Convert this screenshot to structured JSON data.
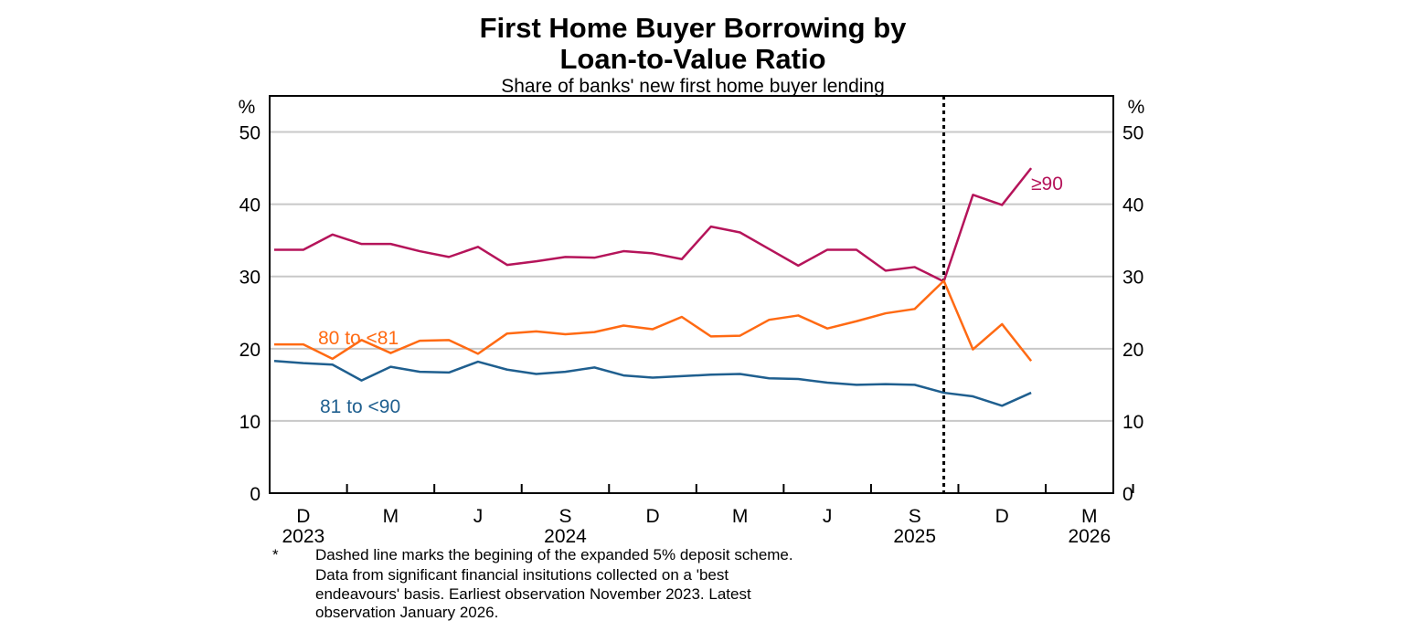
{
  "chart_data": {
    "type": "line",
    "title_lines": [
      "First Home Buyer Borrowing by",
      "Loan-to-Value Ratio"
    ],
    "subtitle": "Share of banks' new first home buyer lending",
    "ylabel_left": "%",
    "ylabel_right": "%",
    "ylim": [
      0,
      55
    ],
    "yticks": [
      0,
      10,
      20,
      30,
      40,
      50
    ],
    "x_start": "2023-11",
    "x_end": "2026-01",
    "xticks": [
      {
        "label": "D",
        "year": "2023"
      },
      {
        "label": "M",
        "year": ""
      },
      {
        "label": "J",
        "year": ""
      },
      {
        "label": "S",
        "year": "2024"
      },
      {
        "label": "D",
        "year": ""
      },
      {
        "label": "M",
        "year": ""
      },
      {
        "label": "J",
        "year": ""
      },
      {
        "label": "S",
        "year": "2025"
      },
      {
        "label": "D",
        "year": ""
      },
      {
        "label": "M",
        "year": "2026"
      }
    ],
    "grid": true,
    "marker_month": "2025-10",
    "series": [
      {
        "name": "≥90",
        "color": "#b5145a",
        "values": [
          33.7,
          33.7,
          35.8,
          34.5,
          34.5,
          33.5,
          32.7,
          34.1,
          31.6,
          32.1,
          32.7,
          32.6,
          33.5,
          33.2,
          32.4,
          36.9,
          36.1,
          33.8,
          31.5,
          33.7,
          33.7,
          30.8,
          31.3,
          29.3,
          41.3,
          39.9,
          45.0
        ]
      },
      {
        "name": "80 to <81",
        "color": "#ff6a13",
        "values": [
          20.6,
          20.6,
          18.6,
          21.2,
          19.4,
          21.1,
          21.2,
          19.3,
          22.1,
          22.4,
          22.0,
          22.3,
          23.2,
          22.7,
          24.4,
          21.7,
          21.8,
          24.0,
          24.6,
          22.8,
          23.8,
          24.9,
          25.5,
          29.4,
          19.9,
          23.4,
          18.3
        ]
      },
      {
        "name": "81 to <90",
        "color": "#1f5f8f",
        "values": [
          18.3,
          18.0,
          17.8,
          15.6,
          17.5,
          16.8,
          16.7,
          18.2,
          17.1,
          16.5,
          16.8,
          17.4,
          16.3,
          16.0,
          16.2,
          16.4,
          16.5,
          15.9,
          15.8,
          15.3,
          15.0,
          15.1,
          15.0,
          13.9,
          13.4,
          12.1,
          13.9
        ]
      }
    ],
    "footnote_marker": "*",
    "footnote_lines": [
      "Dashed line marks the begining of the expanded 5% deposit scheme.",
      "Data from significant financial insitutions collected on a 'best",
      "endeavours' basis. Earliest observation November 2023. Latest",
      "observation January 2026."
    ]
  }
}
